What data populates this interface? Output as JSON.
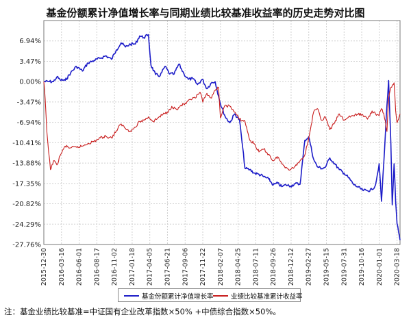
{
  "chart_data": {
    "type": "line",
    "title": "基金份额累计净值增长率与同期业绩比较基准收益率的历史走势对比图",
    "ylim": [
      -27.76,
      10.41
    ],
    "y_ticks": [
      "6.94%",
      "3.47%",
      "0.00%",
      "-3.47%",
      "-6.94%",
      "-10.41%",
      "-13.88%",
      "-17.35%",
      "-20.82%",
      "-24.29%",
      "-27.76%"
    ],
    "y_tick_values": [
      6.94,
      3.47,
      0.0,
      -3.47,
      -6.94,
      -10.41,
      -13.88,
      -17.35,
      -20.82,
      -24.29,
      -27.76
    ],
    "x_ticks": [
      "2015-12-30",
      "2016-03-16",
      "2016-06-01",
      "2016-08-17",
      "2016-11-02",
      "2017-01-18",
      "2017-04-05",
      "2017-06-21",
      "2017-09-06",
      "2017-11-22",
      "2018-02-07",
      "2018-04-25",
      "2018-07-11",
      "2018-09-26",
      "2018-12-12",
      "2019-02-27",
      "2019-05-15",
      "2019-07-31",
      "2019-10-16",
      "2020-01-01",
      "2020-03-18"
    ],
    "grid": true,
    "legend_position": "bottom",
    "series": [
      {
        "name": "基金份额累计净值增长率",
        "color": "#1c1cc8",
        "x": [
          "2015-12-30",
          "2016-01-20",
          "2016-02-10",
          "2016-02-25",
          "2016-03-10",
          "2016-04-01",
          "2016-04-25",
          "2016-05-20",
          "2016-06-15",
          "2016-07-10",
          "2016-08-05",
          "2016-09-01",
          "2016-09-25",
          "2016-10-20",
          "2016-11-10",
          "2016-12-01",
          "2016-12-20",
          "2017-01-10",
          "2017-02-01",
          "2017-02-20",
          "2017-03-10",
          "2017-03-30",
          "2017-04-10",
          "2017-04-30",
          "2017-05-20",
          "2017-06-10",
          "2017-07-01",
          "2017-07-20",
          "2017-08-10",
          "2017-09-01",
          "2017-09-20",
          "2017-10-10",
          "2017-10-30",
          "2017-11-20",
          "2017-12-10",
          "2017-12-30",
          "2018-01-15",
          "2018-01-30",
          "2018-02-07",
          "2018-02-28",
          "2018-03-20",
          "2018-04-10",
          "2018-05-01",
          "2018-05-25",
          "2018-06-15",
          "2018-07-05",
          "2018-07-25",
          "2018-08-15",
          "2018-09-05",
          "2018-09-25",
          "2018-10-15",
          "2018-11-01",
          "2018-11-20",
          "2018-12-10",
          "2018-12-30",
          "2019-01-20",
          "2019-02-10",
          "2019-02-27",
          "2019-03-20",
          "2019-04-05",
          "2019-04-25",
          "2019-05-10",
          "2019-05-30",
          "2019-06-20",
          "2019-07-10",
          "2019-07-31",
          "2019-08-20",
          "2019-09-10",
          "2019-09-30",
          "2019-10-20",
          "2019-11-10",
          "2019-11-30",
          "2019-12-15",
          "2019-12-31",
          "2020-01-10",
          "2020-01-20",
          "2020-02-03",
          "2020-02-10",
          "2020-02-20",
          "2020-02-26",
          "2020-03-05",
          "2020-03-12",
          "2020-03-18",
          "2020-03-24",
          "2020-03-31"
        ],
        "y": [
          0.0,
          0.0,
          0.0,
          0.8,
          0.3,
          0.2,
          1.5,
          2.6,
          1.8,
          3.2,
          3.6,
          4.0,
          4.4,
          3.8,
          5.4,
          6.6,
          5.9,
          6.4,
          6.4,
          7.8,
          7.5,
          8.0,
          2.8,
          1.2,
          1.0,
          2.6,
          1.3,
          1.3,
          3.0,
          1.3,
          0.4,
          0.5,
          -0.5,
          0.4,
          -1.2,
          -0.2,
          0.0,
          -2.5,
          -3.8,
          -6.0,
          -7.0,
          -5.5,
          -6.5,
          -14.8,
          -15.0,
          -15.6,
          -15.8,
          -16.2,
          -16.6,
          -17.6,
          -17.3,
          -17.9,
          -17.6,
          -17.8,
          -17.4,
          -17.5,
          -10.0,
          -9.4,
          -13.2,
          -14.5,
          -14.8,
          -14.6,
          -13.0,
          -14.0,
          -15.0,
          -15.6,
          -16.4,
          -17.5,
          -18.0,
          -18.5,
          -18.6,
          -18.4,
          -17.6,
          -14.0,
          -20.4,
          -14.0,
          -4.0,
          0.2,
          -10.5,
          -21.0,
          -14.0,
          -20.5,
          -24.2,
          -25.5,
          -27.0
        ]
      },
      {
        "name": "业绩比较基准累计收益率",
        "color": "#c81c1c",
        "x": [
          "2015-12-30",
          "2016-01-05",
          "2016-01-12",
          "2016-01-20",
          "2016-01-28",
          "2016-02-10",
          "2016-02-25",
          "2016-03-10",
          "2016-04-01",
          "2016-04-25",
          "2016-05-20",
          "2016-06-15",
          "2016-07-10",
          "2016-08-05",
          "2016-09-01",
          "2016-09-25",
          "2016-10-20",
          "2016-11-10",
          "2016-12-01",
          "2016-12-20",
          "2017-01-10",
          "2017-02-01",
          "2017-02-20",
          "2017-03-10",
          "2017-03-30",
          "2017-04-20",
          "2017-05-10",
          "2017-06-01",
          "2017-06-21",
          "2017-07-10",
          "2017-08-01",
          "2017-08-20",
          "2017-09-10",
          "2017-09-30",
          "2017-10-20",
          "2017-11-10",
          "2017-11-22",
          "2017-12-10",
          "2017-12-30",
          "2018-01-15",
          "2018-01-30",
          "2018-02-07",
          "2018-02-28",
          "2018-03-20",
          "2018-04-10",
          "2018-05-01",
          "2018-05-25",
          "2018-06-15",
          "2018-07-05",
          "2018-07-25",
          "2018-08-15",
          "2018-09-05",
          "2018-09-25",
          "2018-10-15",
          "2018-11-01",
          "2018-11-20",
          "2018-12-10",
          "2018-12-30",
          "2019-01-20",
          "2019-02-10",
          "2019-02-27",
          "2019-03-20",
          "2019-04-05",
          "2019-04-25",
          "2019-05-10",
          "2019-05-30",
          "2019-06-20",
          "2019-07-10",
          "2019-07-31",
          "2019-08-20",
          "2019-09-10",
          "2019-09-30",
          "2019-10-20",
          "2019-11-10",
          "2019-11-30",
          "2019-12-15",
          "2019-12-31",
          "2020-01-10",
          "2020-01-20",
          "2020-02-03",
          "2020-02-10",
          "2020-02-20",
          "2020-03-05",
          "2020-03-12",
          "2020-03-18",
          "2020-03-31"
        ],
        "y": [
          0.0,
          -3.0,
          -8.5,
          -12.0,
          -15.0,
          -13.5,
          -14.2,
          -12.6,
          -11.0,
          -11.3,
          -11.2,
          -11.0,
          -10.5,
          -10.2,
          -9.6,
          -9.3,
          -9.6,
          -8.4,
          -7.2,
          -8.0,
          -8.4,
          -7.8,
          -6.8,
          -6.6,
          -6.0,
          -6.8,
          -6.2,
          -5.6,
          -5.2,
          -4.2,
          -4.8,
          -4.0,
          -3.8,
          -3.0,
          -2.8,
          -1.8,
          -3.5,
          -2.0,
          -2.8,
          -1.5,
          -1.0,
          -6.2,
          -4.0,
          -4.2,
          -5.2,
          -6.4,
          -6.8,
          -10.0,
          -10.6,
          -12.0,
          -11.5,
          -12.4,
          -13.5,
          -12.8,
          -14.0,
          -14.6,
          -15.0,
          -14.4,
          -13.5,
          -12.5,
          -9.6,
          -5.2,
          -4.6,
          -6.6,
          -6.0,
          -8.2,
          -7.0,
          -5.5,
          -6.6,
          -6.0,
          -5.8,
          -5.6,
          -5.6,
          -6.4,
          -5.0,
          -5.5,
          -5.8,
          -4.6,
          -5.4,
          -8.5,
          -2.8,
          -1.0,
          -0.2,
          -5.0,
          -7.0,
          -5.5
        ]
      }
    ]
  },
  "footnote": "注：基金业绩比较基准=中证国有企业改革指数×50% +中债综合指数×50%。"
}
